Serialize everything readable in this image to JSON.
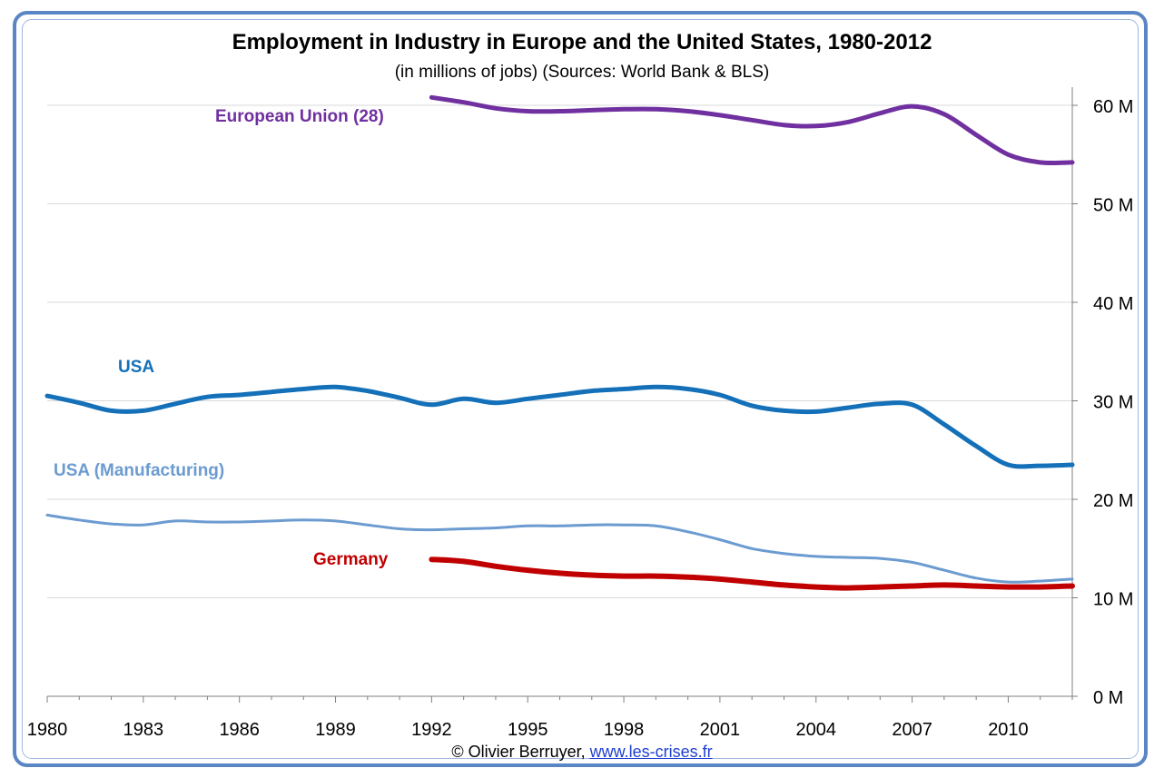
{
  "colors": {
    "eu": "#7030a0",
    "usa": "#1470b8",
    "usa_manufacturing": "#6b9bd0",
    "germany": "#c00000",
    "frame": "#5b86c4",
    "grid": "#d9d9d9"
  },
  "footer": {
    "credit": "© Olivier Berruyer,",
    "link": "www.les-crises.fr"
  },
  "chart_data": {
    "type": "line",
    "title": "Employment in Industry in Europe and the United States, 1980-2012",
    "subtitle": "(in millions of jobs) (Sources: World Bank & BLS)",
    "xlim": [
      1980,
      2012
    ],
    "ylim": [
      0,
      60
    ],
    "x_ticks": [
      "1980",
      "1983",
      "1986",
      "1989",
      "1992",
      "1995",
      "1998",
      "2001",
      "2004",
      "2007",
      "2010"
    ],
    "y_ticks": [
      "0 M",
      "10 M",
      "20 M",
      "30 M",
      "40 M",
      "50 M",
      "60 M"
    ],
    "y_axis_position": "right",
    "grid": "horizontal",
    "legend": "inline labels",
    "series": [
      {
        "name": "European Union (28)",
        "color_key": "eu",
        "width": 5,
        "x": [
          1992,
          1993,
          1994,
          1995,
          1996,
          1997,
          1998,
          1999,
          2000,
          2001,
          2002,
          2003,
          2004,
          2005,
          2006,
          2007,
          2008,
          2009,
          2010,
          2011,
          2012
        ],
        "y": [
          60.8,
          60.3,
          59.7,
          59.4,
          59.4,
          59.5,
          59.6,
          59.6,
          59.4,
          59.0,
          58.5,
          58.0,
          57.9,
          58.3,
          59.2,
          59.9,
          59.1,
          57.0,
          55.0,
          54.2,
          54.2
        ]
      },
      {
        "name": "USA",
        "color_key": "usa",
        "width": 5,
        "x": [
          1980,
          1981,
          1982,
          1983,
          1984,
          1985,
          1986,
          1987,
          1988,
          1989,
          1990,
          1991,
          1992,
          1993,
          1994,
          1995,
          1996,
          1997,
          1998,
          1999,
          2000,
          2001,
          2002,
          2003,
          2004,
          2005,
          2006,
          2007,
          2008,
          2009,
          2010,
          2011,
          2012
        ],
        "y": [
          30.5,
          29.8,
          29.0,
          29.0,
          29.7,
          30.4,
          30.6,
          30.9,
          31.2,
          31.4,
          31.0,
          30.3,
          29.6,
          30.2,
          29.8,
          30.2,
          30.6,
          31.0,
          31.2,
          31.4,
          31.2,
          30.6,
          29.5,
          29.0,
          28.9,
          29.3,
          29.7,
          29.6,
          27.6,
          25.4,
          23.5,
          23.4,
          23.5
        ]
      },
      {
        "name": "USA (Manufacturing)",
        "color_key": "usa_manufacturing",
        "width": 3,
        "x": [
          1980,
          1981,
          1982,
          1983,
          1984,
          1985,
          1986,
          1987,
          1988,
          1989,
          1990,
          1991,
          1992,
          1993,
          1994,
          1995,
          1996,
          1997,
          1998,
          1999,
          2000,
          2001,
          2002,
          2003,
          2004,
          2005,
          2006,
          2007,
          2008,
          2009,
          2010,
          2011,
          2012
        ],
        "y": [
          18.4,
          17.9,
          17.5,
          17.4,
          17.8,
          17.7,
          17.7,
          17.8,
          17.9,
          17.8,
          17.4,
          17.0,
          16.9,
          17.0,
          17.1,
          17.3,
          17.3,
          17.4,
          17.4,
          17.3,
          16.7,
          15.9,
          15.0,
          14.5,
          14.2,
          14.1,
          14.0,
          13.6,
          12.8,
          12.0,
          11.6,
          11.7,
          11.9
        ]
      },
      {
        "name": "Germany",
        "color_key": "germany",
        "width": 6,
        "x": [
          1992,
          1993,
          1994,
          1995,
          1996,
          1997,
          1998,
          1999,
          2000,
          2001,
          2002,
          2003,
          2004,
          2005,
          2006,
          2007,
          2008,
          2009,
          2010,
          2011,
          2012
        ],
        "y": [
          13.9,
          13.7,
          13.2,
          12.8,
          12.5,
          12.3,
          12.2,
          12.2,
          12.1,
          11.9,
          11.6,
          11.3,
          11.1,
          11.0,
          11.1,
          11.2,
          11.3,
          11.2,
          11.1,
          11.1,
          11.2
        ]
      }
    ]
  }
}
